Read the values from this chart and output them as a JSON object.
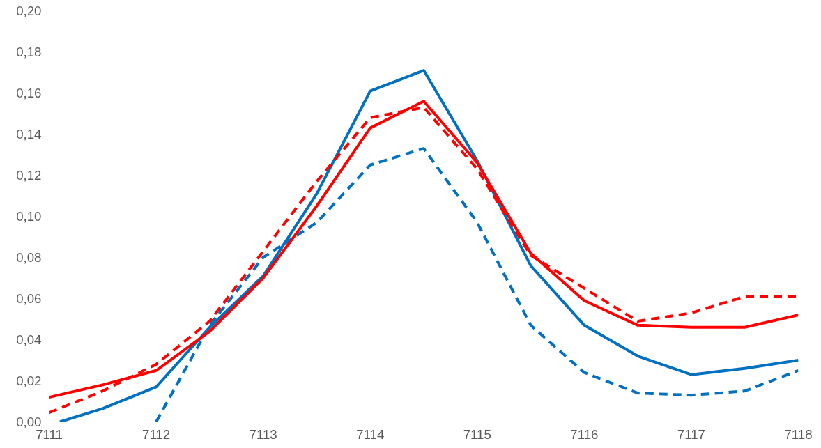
{
  "chart_data": {
    "type": "line",
    "xlim": [
      7111,
      7118
    ],
    "xticks": [
      7111,
      7112,
      7113,
      7114,
      7115,
      7116,
      7117,
      7118
    ],
    "ylim": [
      0,
      0.2
    ],
    "yticks": [
      {
        "value": 0,
        "label": "0,00"
      },
      {
        "value": 0.02,
        "label": "0,02"
      },
      {
        "value": 0.04,
        "label": "0,04"
      },
      {
        "value": 0.06,
        "label": "0,06"
      },
      {
        "value": 0.08,
        "label": "0,08"
      },
      {
        "value": 0.1,
        "label": "0,10"
      },
      {
        "value": 0.12,
        "label": "0,12"
      },
      {
        "value": 0.14,
        "label": "0,14"
      },
      {
        "value": 0.16,
        "label": "0,16"
      },
      {
        "value": 0.18,
        "label": "0,18"
      },
      {
        "value": 0.2,
        "label": "0,20"
      }
    ],
    "grid": false,
    "marker": "none",
    "series": [
      {
        "color": "#0070c0",
        "line_style": "solid",
        "x": [
          7111.1,
          7111.5,
          7112,
          7112.5,
          7113,
          7113.5,
          7114,
          7114.5,
          7115,
          7115.5,
          7116,
          7116.5,
          7117,
          7117.5,
          7118
        ],
        "values": [
          0.0,
          0.0065,
          0.017,
          0.046,
          0.071,
          0.111,
          0.161,
          0.171,
          0.127,
          0.076,
          0.047,
          0.032,
          0.023,
          0.026,
          0.03
        ]
      },
      {
        "color": "#0070c0",
        "line_style": "dashed",
        "x": [
          7112,
          7112.5,
          7113,
          7113.5,
          7114,
          7114.5,
          7115,
          7115.5,
          7116,
          7116.5,
          7117,
          7117.5,
          7118
        ],
        "values": [
          0.0,
          0.047,
          0.08,
          0.097,
          0.125,
          0.133,
          0.097,
          0.047,
          0.024,
          0.014,
          0.013,
          0.015,
          0.025
        ]
      },
      {
        "color": "#ff0000",
        "line_style": "solid",
        "x": [
          7111,
          7111.5,
          7112,
          7112.5,
          7113,
          7113.5,
          7114,
          7114.5,
          7115,
          7115.5,
          7116,
          7116.5,
          7117,
          7117.5,
          7118
        ],
        "values": [
          0.012,
          0.018,
          0.025,
          0.044,
          0.07,
          0.105,
          0.143,
          0.156,
          0.126,
          0.082,
          0.059,
          0.047,
          0.046,
          0.046,
          0.052
        ]
      },
      {
        "color": "#ff0000",
        "line_style": "dashed",
        "x": [
          7111,
          7111.5,
          7112,
          7112.5,
          7113,
          7113.5,
          7114,
          7114.5,
          7115,
          7115.5,
          7116,
          7116.5,
          7117,
          7117.5,
          7118
        ],
        "values": [
          0.0045,
          0.015,
          0.028,
          0.049,
          0.083,
          0.117,
          0.148,
          0.153,
          0.123,
          0.081,
          0.065,
          0.049,
          0.053,
          0.061,
          0.061
        ]
      }
    ]
  }
}
